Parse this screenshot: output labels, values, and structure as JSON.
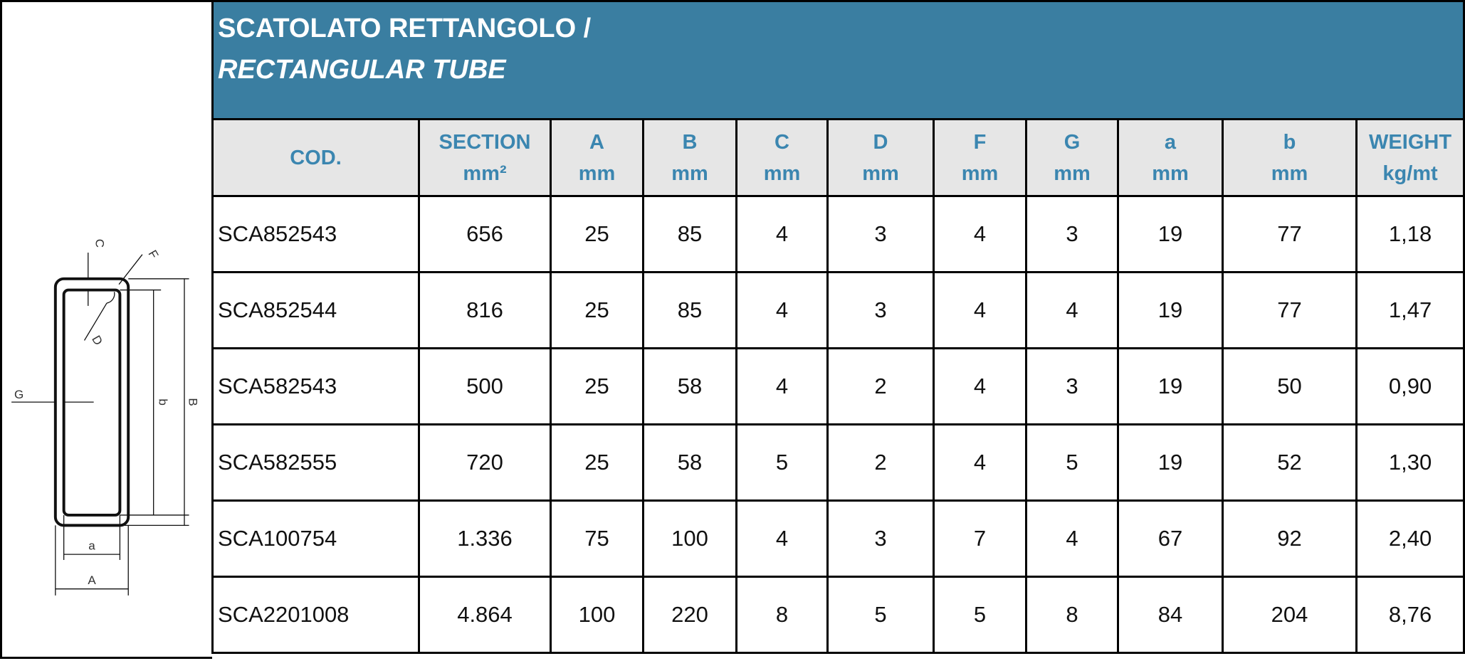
{
  "header": {
    "title": "SCATOLATO RETTANGOLO /",
    "subtitle": "RECTANGULAR TUBE"
  },
  "table": {
    "columns": [
      [
        "COD."
      ],
      [
        "SECTION",
        "mm²"
      ],
      [
        "A",
        "mm"
      ],
      [
        "B",
        "mm"
      ],
      [
        "C",
        "mm"
      ],
      [
        "D",
        "mm"
      ],
      [
        "F",
        "mm"
      ],
      [
        "G",
        "mm"
      ],
      [
        "a",
        "mm"
      ],
      [
        "b",
        "mm"
      ],
      [
        "WEIGHT",
        "kg/mt"
      ]
    ],
    "rows": [
      [
        "SCA852543",
        "656",
        "25",
        "85",
        "4",
        "3",
        "4",
        "3",
        "19",
        "77",
        "1,18"
      ],
      [
        "SCA852544",
        "816",
        "25",
        "85",
        "4",
        "3",
        "4",
        "4",
        "19",
        "77",
        "1,47"
      ],
      [
        "SCA582543",
        "500",
        "25",
        "58",
        "4",
        "2",
        "4",
        "3",
        "19",
        "50",
        "0,90"
      ],
      [
        "SCA582555",
        "720",
        "25",
        "58",
        "5",
        "2",
        "4",
        "5",
        "19",
        "52",
        "1,30"
      ],
      [
        "SCA100754",
        "1.336",
        "75",
        "100",
        "4",
        "3",
        "7",
        "4",
        "67",
        "92",
        "2,40"
      ],
      [
        "SCA2201008",
        "4.864",
        "100",
        "220",
        "8",
        "5",
        "5",
        "8",
        "84",
        "204",
        "8,76"
      ]
    ]
  },
  "diagram": {
    "labels": [
      "C",
      "F",
      "D",
      "G",
      "b",
      "B",
      "a",
      "A"
    ]
  }
}
